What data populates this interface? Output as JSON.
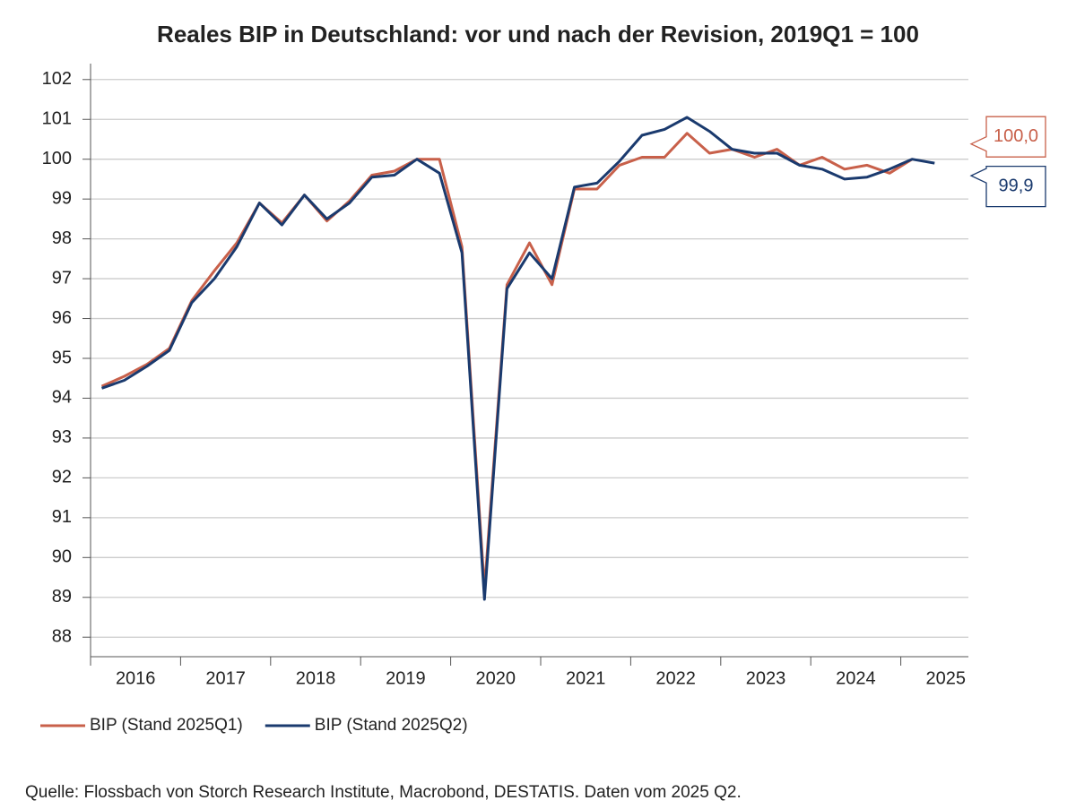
{
  "chart_data": {
    "type": "line",
    "title": "Reales BIP in Deutschland: vor und nach der Revision, 2019Q1 = 100",
    "source": "Quelle: Flossbach von Storch Research Institute, Macrobond, DESTATIS. Daten vom 2025 Q2.",
    "categories": [
      "2016",
      null,
      null,
      null,
      "2017",
      null,
      null,
      null,
      "2018",
      null,
      null,
      null,
      "2019",
      null,
      null,
      null,
      "2020",
      null,
      null,
      null,
      "2021",
      null,
      null,
      null,
      "2022",
      null,
      null,
      null,
      "2023",
      null,
      null,
      null,
      "2024",
      null,
      null,
      null,
      "2025",
      null
    ],
    "series": [
      {
        "name": "BIP (Stand 2025Q1)",
        "color": "#c8604a",
        "values": [
          94.3,
          94.55,
          94.85,
          95.25,
          96.45,
          97.2,
          97.9,
          98.9,
          98.4,
          99.1,
          98.45,
          98.95,
          99.6,
          99.7,
          100.0,
          100.0,
          97.8,
          89.2,
          96.85,
          97.9,
          96.85,
          99.25,
          99.25,
          99.85,
          100.05,
          100.05,
          100.65,
          100.15,
          100.25,
          100.05,
          100.25,
          99.85,
          100.05,
          99.75,
          99.85,
          99.65,
          100.0,
          null
        ],
        "value_labels": [
          null,
          null,
          null,
          null,
          null,
          null,
          null,
          null,
          null,
          null,
          null,
          null,
          null,
          null,
          null,
          null,
          null,
          null,
          null,
          null,
          null,
          null,
          null,
          null,
          null,
          null,
          null,
          null,
          null,
          null,
          null,
          null,
          null,
          null,
          null,
          null,
          "100,0",
          null
        ]
      },
      {
        "name": "BIP (Stand 2025Q2)",
        "color": "#1a3a6e",
        "values": [
          94.25,
          94.45,
          94.8,
          95.2,
          96.4,
          97.0,
          97.8,
          98.9,
          98.35,
          99.1,
          98.5,
          98.9,
          99.55,
          99.6,
          100.0,
          99.65,
          97.65,
          88.95,
          96.75,
          97.65,
          97.0,
          99.3,
          99.4,
          99.95,
          100.6,
          100.75,
          101.05,
          100.7,
          100.25,
          100.15,
          100.15,
          99.85,
          99.75,
          99.5,
          99.55,
          99.75,
          100.0,
          99.9
        ],
        "value_labels": [
          null,
          null,
          null,
          null,
          null,
          null,
          null,
          null,
          null,
          null,
          null,
          null,
          null,
          null,
          null,
          null,
          null,
          null,
          null,
          null,
          null,
          null,
          null,
          null,
          null,
          null,
          null,
          null,
          null,
          null,
          null,
          null,
          null,
          null,
          null,
          null,
          null,
          "99,9"
        ]
      }
    ],
    "ylim": [
      87.6,
      102.4
    ],
    "yticks": [
      88,
      89,
      90,
      91,
      92,
      93,
      94,
      95,
      96,
      97,
      98,
      99,
      100,
      101,
      102
    ],
    "grid": true
  }
}
